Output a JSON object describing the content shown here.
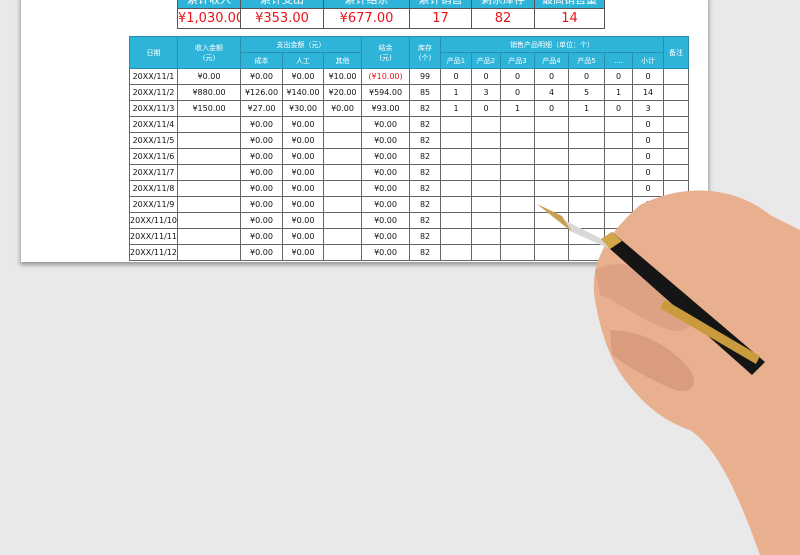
{
  "summary": {
    "headers": [
      "累计收入",
      "累计支出",
      "累计结余",
      "累计销售",
      "剩余库存",
      "最高销售量"
    ],
    "values": [
      "¥1,030.00",
      "¥353.00",
      "¥677.00",
      "17",
      "82",
      "14"
    ]
  },
  "table": {
    "headers": {
      "date": "日期",
      "income": "收入金额\n(元)",
      "expense": "支出金额（元）",
      "cost": "成本",
      "labor": "人工",
      "other": "其他",
      "balance": "结余\n(元)",
      "stock": "库存\n(个)",
      "sales": "销售产品明细（单位：个）",
      "products": [
        "产品1",
        "产品2",
        "产品3",
        "产品4",
        "产品5",
        "....",
        "小计"
      ],
      "note": "备注"
    },
    "rows": [
      [
        "20XX/11/1",
        "¥0.00",
        "¥0.00",
        "¥0.00",
        "¥10.00",
        "(¥10.00)",
        "99",
        "0",
        "0",
        "0",
        "0",
        "0",
        "0",
        "0",
        ""
      ],
      [
        "20XX/11/2",
        "¥880.00",
        "¥126.00",
        "¥140.00",
        "¥20.00",
        "¥594.00",
        "85",
        "1",
        "3",
        "0",
        "4",
        "5",
        "1",
        "14",
        ""
      ],
      [
        "20XX/11/3",
        "¥150.00",
        "¥27.00",
        "¥30.00",
        "¥0.00",
        "¥93.00",
        "82",
        "1",
        "0",
        "1",
        "0",
        "1",
        "0",
        "3",
        ""
      ],
      [
        "20XX/11/4",
        "",
        "¥0.00",
        "¥0.00",
        "",
        "¥0.00",
        "82",
        "",
        "",
        "",
        "",
        "",
        "",
        "0",
        ""
      ],
      [
        "20XX/11/5",
        "",
        "¥0.00",
        "¥0.00",
        "",
        "¥0.00",
        "82",
        "",
        "",
        "",
        "",
        "",
        "",
        "0",
        ""
      ],
      [
        "20XX/11/6",
        "",
        "¥0.00",
        "¥0.00",
        "",
        "¥0.00",
        "82",
        "",
        "",
        "",
        "",
        "",
        "",
        "0",
        ""
      ],
      [
        "20XX/11/7",
        "",
        "¥0.00",
        "¥0.00",
        "",
        "¥0.00",
        "82",
        "",
        "",
        "",
        "",
        "",
        "",
        "0",
        ""
      ],
      [
        "20XX/11/8",
        "",
        "¥0.00",
        "¥0.00",
        "",
        "¥0.00",
        "82",
        "",
        "",
        "",
        "",
        "",
        "",
        "0",
        ""
      ],
      [
        "20XX/11/9",
        "",
        "¥0.00",
        "¥0.00",
        "",
        "¥0.00",
        "82",
        "",
        "",
        "",
        "",
        "",
        "",
        "0",
        ""
      ],
      [
        "20XX/11/10",
        "",
        "¥0.00",
        "¥0.00",
        "",
        "¥0.00",
        "82",
        "",
        "",
        "",
        "",
        "",
        "",
        "",
        ""
      ],
      [
        "20XX/11/11",
        "",
        "¥0.00",
        "¥0.00",
        "",
        "¥0.00",
        "82",
        "",
        "",
        "",
        "",
        "",
        "",
        "",
        ""
      ],
      [
        "20XX/11/12",
        "",
        "¥0.00",
        "¥0.00",
        "",
        "¥0.00",
        "82",
        "",
        "",
        "",
        "",
        "",
        "",
        "",
        ""
      ]
    ]
  },
  "colors": {
    "header_bg": "#2fb4d9",
    "negative": "#e8141a",
    "background": "#e9e9e9"
  }
}
